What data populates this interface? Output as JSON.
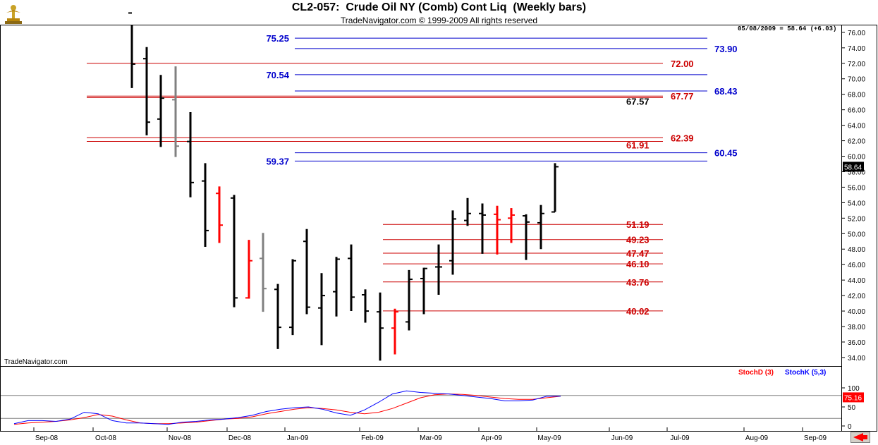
{
  "header": {
    "title": "CL2-057:  Crude Oil NY (Comb) Cont Liq  (Weekly bars)",
    "copyright": "TradeNavigator.com © 1999-2009 All rights reserved",
    "as_of": "05/08/2009 = 58.64 (+6.03)",
    "watermark": "TradeNavigator.com"
  },
  "colors": {
    "bar_default": "#000000",
    "bar_down": "#ff0000",
    "bar_gray": "#808080",
    "fib_red": "#cc0000",
    "fib_blue": "#0000cc",
    "stoch_d": "#ff0000",
    "stoch_k": "#0000ff",
    "last_price_bg": "#000000",
    "stoch_tag_bg": "#ff0000"
  },
  "chart_data": [
    {
      "type": "ohlc",
      "title": "CL2-057:  Crude Oil NY (Comb) Cont Liq  (Weekly bars)",
      "yaxis": {
        "min": 32.9,
        "max": 76.9,
        "ticks": [
          "34.00",
          "36.00",
          "38.00",
          "40.00",
          "42.00",
          "44.00",
          "46.00",
          "48.00",
          "50.00",
          "52.00",
          "54.00",
          "56.00",
          "58.00",
          "60.00",
          "62.00",
          "64.00",
          "66.00",
          "68.00",
          "70.00",
          "72.00",
          "74.00",
          "76.00"
        ],
        "side": "right"
      },
      "xaxis": {
        "ticks": [
          "Sep-08",
          "Oct-08",
          "Nov-08",
          "Dec-08",
          "Jan-09",
          "Feb-09",
          "Mar-09",
          "Apr-09",
          "May-09",
          "Jun-09",
          "Jul-09",
          "Aug-09",
          "Sep-09"
        ]
      },
      "last_price": "58.64",
      "bars": [
        {
          "o": 78.5,
          "h": 80.0,
          "l": 68.8,
          "c": 71.9,
          "color": "black"
        },
        {
          "o": 72.6,
          "h": 74.1,
          "l": 62.7,
          "c": 64.4,
          "color": "black"
        },
        {
          "o": 64.8,
          "h": 70.5,
          "l": 61.2,
          "c": 67.5,
          "color": "black"
        },
        {
          "o": 67.3,
          "h": 71.6,
          "l": 59.9,
          "c": 61.3,
          "color": "gray"
        },
        {
          "o": 61.9,
          "h": 65.7,
          "l": 54.7,
          "c": 56.6,
          "color": "black"
        },
        {
          "o": 56.8,
          "h": 59.1,
          "l": 48.3,
          "c": 50.4,
          "color": "black"
        },
        {
          "o": 55.2,
          "h": 56.1,
          "l": 48.8,
          "c": 51.1,
          "color": "red"
        },
        {
          "o": 54.6,
          "h": 55.0,
          "l": 40.5,
          "c": 41.7,
          "color": "black"
        },
        {
          "o": 41.7,
          "h": 49.2,
          "l": 41.6,
          "c": 46.5,
          "color": "red"
        },
        {
          "o": 46.8,
          "h": 50.1,
          "l": 39.9,
          "c": 42.9,
          "color": "gray"
        },
        {
          "o": 42.8,
          "h": 43.5,
          "l": 35.1,
          "c": 37.9,
          "color": "black"
        },
        {
          "o": 37.9,
          "h": 46.7,
          "l": 36.9,
          "c": 46.5,
          "color": "black"
        },
        {
          "o": 49.0,
          "h": 50.6,
          "l": 39.6,
          "c": 40.5,
          "color": "black"
        },
        {
          "o": 40.4,
          "h": 44.9,
          "l": 35.6,
          "c": 42.0,
          "color": "black"
        },
        {
          "o": 42.5,
          "h": 47.0,
          "l": 39.3,
          "c": 46.7,
          "color": "black"
        },
        {
          "o": 46.8,
          "h": 48.6,
          "l": 40.0,
          "c": 41.8,
          "color": "black"
        },
        {
          "o": 42.1,
          "h": 42.8,
          "l": 38.5,
          "c": 40.0,
          "color": "black"
        },
        {
          "o": 39.9,
          "h": 42.4,
          "l": 33.6,
          "c": 37.8,
          "color": "black"
        },
        {
          "o": 37.8,
          "h": 40.3,
          "l": 34.4,
          "c": 39.9,
          "color": "red"
        },
        {
          "o": 38.6,
          "h": 45.3,
          "l": 37.5,
          "c": 44.1,
          "color": "black"
        },
        {
          "o": 44.2,
          "h": 45.6,
          "l": 39.6,
          "c": 45.5,
          "color": "black"
        },
        {
          "o": 45.7,
          "h": 48.6,
          "l": 42.1,
          "c": 45.7,
          "color": "black"
        },
        {
          "o": 46.5,
          "h": 53.0,
          "l": 44.7,
          "c": 51.9,
          "color": "black"
        },
        {
          "o": 51.7,
          "h": 54.6,
          "l": 51.0,
          "c": 52.6,
          "color": "black"
        },
        {
          "o": 52.6,
          "h": 53.9,
          "l": 47.4,
          "c": 52.4,
          "color": "black"
        },
        {
          "o": 52.5,
          "h": 53.6,
          "l": 47.3,
          "c": 51.8,
          "color": "red"
        },
        {
          "o": 52.0,
          "h": 53.3,
          "l": 48.8,
          "c": 52.4,
          "color": "red"
        },
        {
          "o": 52.3,
          "h": 52.5,
          "l": 46.6,
          "c": 51.5,
          "color": "black"
        },
        {
          "o": 51.4,
          "h": 53.7,
          "l": 48.0,
          "c": 52.6,
          "color": "black"
        },
        {
          "o": 52.8,
          "h": 59.1,
          "l": 52.8,
          "c": 58.64,
          "color": "black"
        }
      ],
      "fib_levels": [
        {
          "value": "75.25",
          "color": "blue",
          "label_side": "left"
        },
        {
          "value": "73.90",
          "color": "blue",
          "label_side": "right"
        },
        {
          "value": "72.00",
          "color": "red",
          "label_side": "right"
        },
        {
          "value": "70.54",
          "color": "blue",
          "label_side": "left"
        },
        {
          "value": "68.43",
          "color": "blue",
          "label_side": "right"
        },
        {
          "value": "67.77",
          "color": "red",
          "label_side": "right"
        },
        {
          "value": "67.57",
          "color": "black",
          "label_side": "mid"
        },
        {
          "value": "62.39",
          "color": "red",
          "label_side": "right"
        },
        {
          "value": "61.91",
          "color": "red",
          "label_side": "mid"
        },
        {
          "value": "60.45",
          "color": "blue",
          "label_side": "right"
        },
        {
          "value": "59.37",
          "color": "blue",
          "label_side": "left"
        },
        {
          "value": "51.19",
          "color": "red",
          "label_side": "mid"
        },
        {
          "value": "49.23",
          "color": "red",
          "label_side": "mid"
        },
        {
          "value": "47.47",
          "color": "red",
          "label_side": "mid"
        },
        {
          "value": "46.10",
          "color": "red",
          "label_side": "mid"
        },
        {
          "value": "43.76",
          "color": "red",
          "label_side": "mid"
        },
        {
          "value": "40.02",
          "color": "red",
          "label_side": "mid"
        }
      ]
    },
    {
      "type": "line",
      "title": "Stochastic",
      "yaxis": {
        "ticks": [
          "0",
          "50",
          "100"
        ]
      },
      "reference_lines": [
        20,
        80
      ],
      "series": [
        {
          "name": "StochD (3)",
          "color": "#ff0000",
          "values": [
            4,
            8,
            10,
            12,
            16,
            22,
            30,
            26,
            16,
            8,
            6,
            6,
            8,
            10,
            14,
            18,
            20,
            24,
            32,
            38,
            44,
            48,
            46,
            42,
            36,
            32,
            36,
            46,
            60,
            74,
            82,
            84,
            83,
            80,
            76,
            72,
            70,
            70,
            74,
            78
          ]
        },
        {
          "name": "StochK (5,3)",
          "color": "#0000ff",
          "values": [
            6,
            14,
            14,
            12,
            18,
            36,
            32,
            14,
            8,
            8,
            6,
            4,
            10,
            12,
            16,
            18,
            22,
            28,
            38,
            44,
            48,
            50,
            44,
            34,
            28,
            42,
            62,
            84,
            92,
            88,
            86,
            84,
            80,
            76,
            72,
            66,
            66,
            68,
            78,
            78
          ]
        }
      ],
      "value_tag": "75.16"
    }
  ]
}
